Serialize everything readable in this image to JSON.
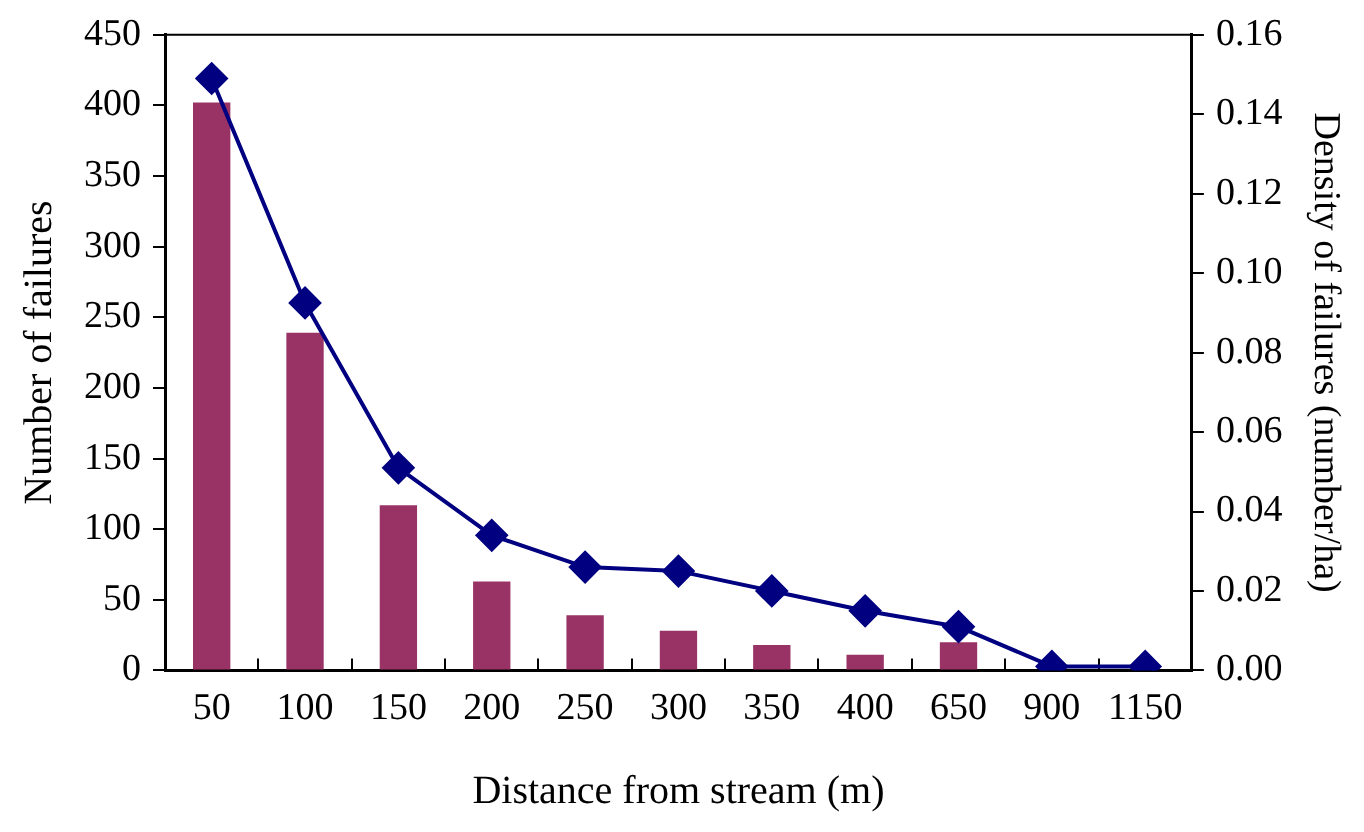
{
  "chart_data": {
    "type": "bar",
    "xlabel": "Distance from stream (m)",
    "ylabel": "Number of failures",
    "y2label": "Density of failures (number/ha)",
    "categories": [
      "50",
      "100",
      "150",
      "200",
      "250",
      "300",
      "350",
      "400",
      "650",
      "900",
      "1150"
    ],
    "series": [
      {
        "color": "#993366",
        "values": [
          402,
          239,
          117,
          63,
          39,
          28,
          18,
          11,
          20,
          0,
          0
        ]
      },
      {
        "type": "line",
        "axis": "y2",
        "color": "#000080",
        "marker": "diamond",
        "values": [
          0.149,
          0.0925,
          0.051,
          0.034,
          0.026,
          0.025,
          0.02,
          0.015,
          0.011,
          0.001,
          0.001
        ]
      }
    ],
    "ylim": [
      0,
      450
    ],
    "yticks": [
      0,
      50,
      100,
      150,
      200,
      250,
      300,
      350,
      400,
      450
    ],
    "y2lim": [
      0,
      0.16
    ],
    "y2ticks": [
      {
        "value": 0,
        "label": "0.00"
      },
      {
        "value": 0.02,
        "label": "0.02"
      },
      {
        "value": 0.04,
        "label": "0.04"
      },
      {
        "value": 0.06,
        "label": "0.06"
      },
      {
        "value": 0.08,
        "label": "0.08"
      },
      {
        "value": 0.1,
        "label": "0.10"
      },
      {
        "value": 0.12,
        "label": "0.12"
      },
      {
        "value": 0.14,
        "label": "0.14"
      },
      {
        "value": 0.16,
        "label": "0.16"
      }
    ],
    "grid": false,
    "legend": false
  }
}
